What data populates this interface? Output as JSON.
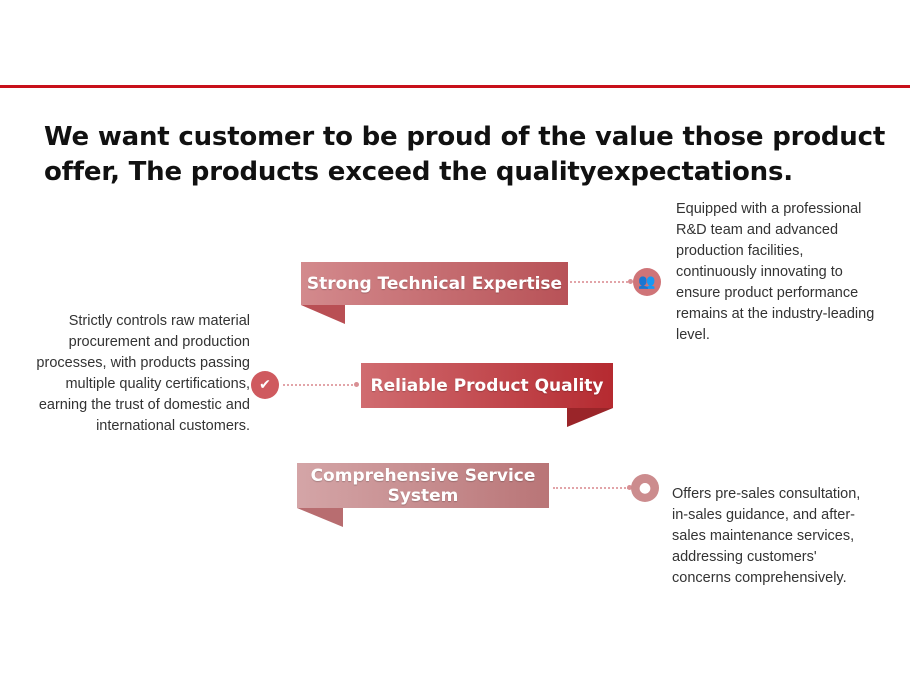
{
  "headline": "We want customer to be proud of the value those product offer, The products exceed the qualityexpectations.",
  "features": [
    {
      "title": "Strong Technical Expertise",
      "icon": "users-icon",
      "description": "Equipped with a professional R&D team and advanced production facilities, continuously innovating to ensure product performance remains at the industry-leading level."
    },
    {
      "title": "Reliable Product Quality",
      "icon": "certificate-icon",
      "description": "Strictly controls raw material procurement and production processes, with products passing multiple quality certifications, earning the trust of domestic and international customers."
    },
    {
      "title": "Comprehensive Service System",
      "icon": "headset-icon",
      "description": "Offers pre-sales consultation, in-sales guidance, and after-sales maintenance services, addressing customers' concerns comprehensively."
    }
  ],
  "colors": {
    "accent": "#c8101a",
    "banner1": "#c2585c",
    "banner2": "#c0393e",
    "banner3": "#c48586"
  }
}
